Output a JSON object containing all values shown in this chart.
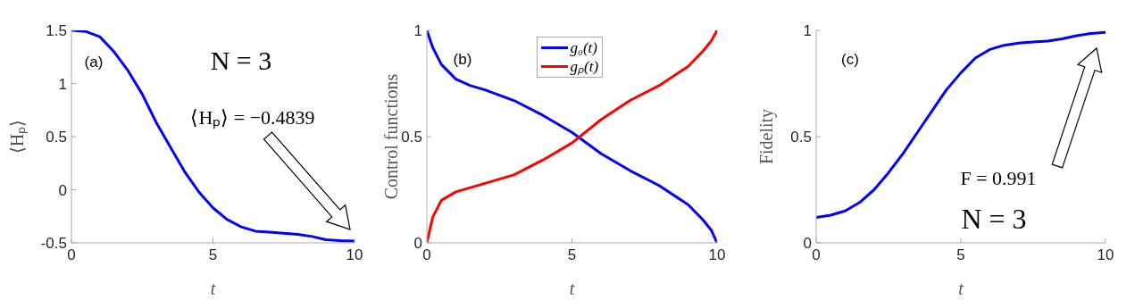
{
  "chart_data": [
    {
      "type": "line",
      "ylabel": "⟨Hₚ⟩",
      "xlabel": "t",
      "annotations": [
        "(a)",
        "N = 3",
        "⟨Hₚ⟩ = −0.4839"
      ],
      "x": [
        0,
        0.5,
        1,
        1.5,
        2,
        2.5,
        3,
        3.5,
        4,
        4.5,
        5,
        5.5,
        6,
        6.5,
        7,
        7.5,
        8,
        8.5,
        9,
        9.5,
        10
      ],
      "series": [
        {
          "color": "#0000ff",
          "values": [
            1.5,
            1.49,
            1.44,
            1.3,
            1.12,
            0.9,
            0.63,
            0.4,
            0.17,
            -0.02,
            -0.17,
            -0.28,
            -0.35,
            -0.39,
            -0.4,
            -0.41,
            -0.42,
            -0.44,
            -0.47,
            -0.48,
            -0.4839
          ]
        }
      ],
      "xlim": [
        0,
        10
      ],
      "xticks": [
        0,
        5,
        10
      ],
      "ylim": [
        -0.5,
        1.5
      ],
      "yticks": [
        -0.5,
        0,
        0.5,
        1,
        1.5
      ],
      "grid": false,
      "legend": false
    },
    {
      "type": "line",
      "ylabel": "Control functions",
      "xlabel": "t",
      "annotations": [
        "(b)"
      ],
      "x": [
        0,
        0.2,
        0.5,
        1,
        1.5,
        2,
        3,
        4,
        5,
        6,
        7,
        8,
        9,
        9.5,
        9.8,
        10
      ],
      "series": [
        {
          "name": "g₀(t)",
          "color": "#0000ff",
          "values": [
            1,
            0.92,
            0.84,
            0.77,
            0.74,
            0.72,
            0.67,
            0.6,
            0.52,
            0.42,
            0.34,
            0.27,
            0.18,
            0.11,
            0.06,
            0
          ]
        },
        {
          "name": "gₚ(t)",
          "color": "#ff0000",
          "values": [
            0,
            0.12,
            0.2,
            0.24,
            0.26,
            0.28,
            0.32,
            0.39,
            0.47,
            0.58,
            0.67,
            0.74,
            0.83,
            0.9,
            0.95,
            1
          ]
        }
      ],
      "xlim": [
        0,
        10
      ],
      "xticks": [
        0,
        5,
        10
      ],
      "ylim": [
        0,
        1
      ],
      "yticks": [
        0,
        0.5,
        1
      ],
      "grid": false,
      "legend": "top"
    },
    {
      "type": "line",
      "ylabel": "Fidelity",
      "xlabel": "t",
      "annotations": [
        "(c)",
        "F = 0.991",
        "N = 3"
      ],
      "x": [
        0,
        0.5,
        1,
        1.5,
        2,
        2.5,
        3,
        3.5,
        4,
        4.5,
        5,
        5.5,
        6,
        6.5,
        7,
        7.5,
        8,
        8.5,
        9,
        9.5,
        10
      ],
      "series": [
        {
          "color": "#0000ff",
          "values": [
            0.12,
            0.13,
            0.15,
            0.19,
            0.25,
            0.33,
            0.42,
            0.52,
            0.62,
            0.72,
            0.8,
            0.87,
            0.91,
            0.93,
            0.94,
            0.945,
            0.95,
            0.96,
            0.975,
            0.985,
            0.991
          ]
        }
      ],
      "xlim": [
        0,
        10
      ],
      "xticks": [
        0,
        5,
        10
      ],
      "ylim": [
        0,
        1
      ],
      "yticks": [
        0,
        0.5,
        1
      ],
      "grid": false,
      "legend": false
    }
  ]
}
